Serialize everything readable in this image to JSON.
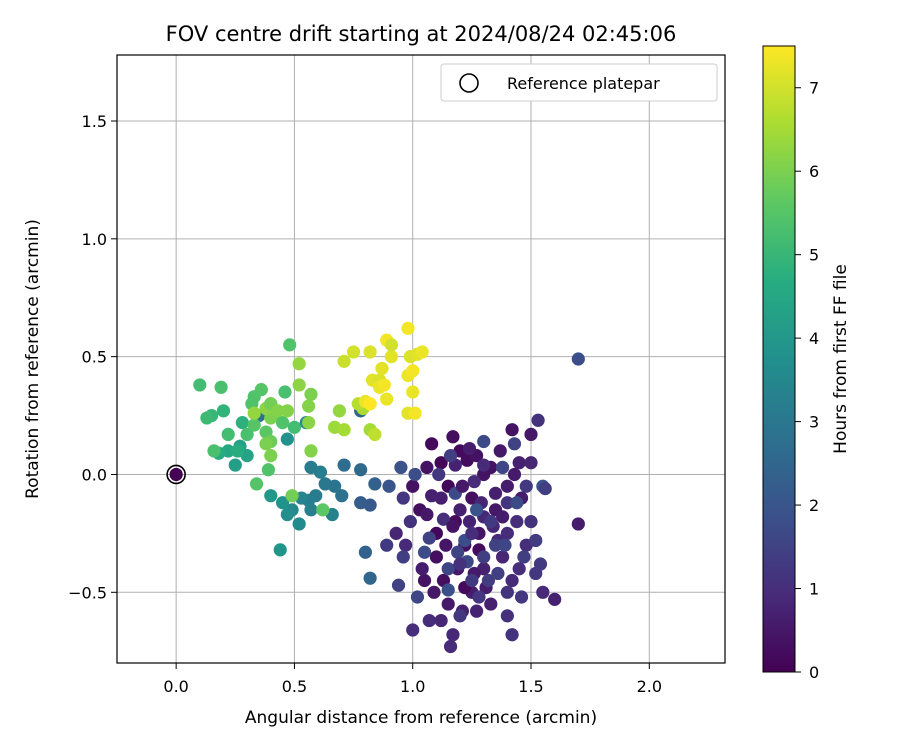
{
  "chart_data": {
    "type": "scatter",
    "title": "FOV centre drift starting at 2024/08/24 02:45:06",
    "xlabel": "Angular distance from reference (arcmin)",
    "ylabel": "Rotation from reference (arcmin)",
    "xlim": [
      -0.25,
      2.32
    ],
    "ylim": [
      -0.8,
      1.78
    ],
    "xticks": [
      0.0,
      0.5,
      1.0,
      1.5,
      2.0
    ],
    "xtick_labels": [
      "0.0",
      "0.5",
      "1.0",
      "1.5",
      "2.0"
    ],
    "yticks": [
      -0.5,
      0.0,
      0.5,
      1.0,
      1.5
    ],
    "ytick_labels": [
      "−0.5",
      "0.0",
      "0.5",
      "1.0",
      "1.5"
    ],
    "grid": true,
    "legend": {
      "placement": "top-right",
      "entries": [
        "Reference platepar"
      ]
    },
    "reference_point": {
      "x": 0.0,
      "y": 0.0,
      "hours": 0.0
    },
    "colorbar": {
      "label": "Hours from first FF file",
      "range": [
        0,
        7.5
      ],
      "ticks": [
        0,
        1,
        2,
        3,
        4,
        5,
        6,
        7
      ],
      "tick_labels": [
        "0",
        "1",
        "2",
        "3",
        "4",
        "5",
        "6",
        "7"
      ],
      "colormap": "viridis"
    },
    "points": [
      [
        1.12,
        0.05,
        0.1
      ],
      [
        1.15,
        -0.05,
        0.15
      ],
      [
        1.2,
        0.1,
        0.2
      ],
      [
        1.25,
        -0.1,
        0.3
      ],
      [
        1.3,
        0.0,
        0.4
      ],
      [
        1.18,
        -0.2,
        0.25
      ],
      [
        1.22,
        -0.3,
        0.35
      ],
      [
        1.28,
        -0.25,
        0.45
      ],
      [
        1.35,
        -0.15,
        0.5
      ],
      [
        1.4,
        -0.05,
        0.6
      ],
      [
        1.45,
        0.05,
        0.7
      ],
      [
        1.1,
        -0.35,
        0.3
      ],
      [
        1.05,
        -0.45,
        0.4
      ],
      [
        1.15,
        -0.55,
        0.5
      ],
      [
        1.25,
        -0.5,
        0.6
      ],
      [
        1.3,
        -0.4,
        0.7
      ],
      [
        1.38,
        -0.35,
        0.8
      ],
      [
        1.42,
        -0.45,
        0.9
      ],
      [
        1.48,
        -0.3,
        1.0
      ],
      [
        1.5,
        -0.2,
        1.1
      ],
      [
        1.08,
        0.13,
        0.2
      ],
      [
        1.17,
        0.16,
        0.3
      ],
      [
        1.23,
        0.06,
        0.25
      ],
      [
        1.27,
        0.08,
        0.35
      ],
      [
        1.33,
        0.03,
        0.4
      ],
      [
        1.37,
        0.1,
        0.5
      ],
      [
        1.43,
        0.0,
        0.55
      ],
      [
        1.46,
        -0.1,
        0.6
      ],
      [
        1.12,
        -0.1,
        0.65
      ],
      [
        1.2,
        -0.15,
        0.7
      ],
      [
        1.24,
        -0.2,
        0.75
      ],
      [
        1.29,
        -0.12,
        0.8
      ],
      [
        1.34,
        -0.22,
        0.85
      ],
      [
        1.36,
        -0.28,
        0.9
      ],
      [
        1.4,
        -0.25,
        0.95
      ],
      [
        1.44,
        -0.2,
        1.0
      ],
      [
        1.03,
        -0.15,
        0.3
      ],
      [
        1.0,
        -0.05,
        0.35
      ],
      [
        1.06,
        0.03,
        0.4
      ],
      [
        1.14,
        -0.3,
        0.45
      ],
      [
        1.19,
        -0.4,
        0.5
      ],
      [
        1.26,
        -0.42,
        0.55
      ],
      [
        1.31,
        -0.48,
        0.6
      ],
      [
        1.33,
        -0.55,
        0.65
      ],
      [
        1.21,
        -0.58,
        0.7
      ],
      [
        1.27,
        -0.58,
        0.75
      ],
      [
        1.12,
        -0.62,
        0.8
      ],
      [
        1.17,
        -0.68,
        0.85
      ],
      [
        1.16,
        -0.73,
        0.9
      ],
      [
        1.07,
        -0.62,
        0.95
      ],
      [
        1.0,
        -0.66,
        1.0
      ],
      [
        1.4,
        -0.6,
        1.05
      ],
      [
        1.42,
        -0.68,
        1.1
      ],
      [
        1.4,
        -0.5,
        1.15
      ],
      [
        1.46,
        -0.52,
        1.2
      ],
      [
        1.52,
        -0.42,
        1.25
      ],
      [
        1.54,
        -0.38,
        1.3
      ],
      [
        1.52,
        -0.28,
        1.35
      ],
      [
        1.47,
        -0.35,
        1.4
      ],
      [
        1.22,
        -0.48,
        0.2
      ],
      [
        1.28,
        -0.32,
        0.25
      ],
      [
        1.1,
        -0.25,
        0.15
      ],
      [
        1.13,
        -0.45,
        0.3
      ],
      [
        1.09,
        -0.5,
        0.5
      ],
      [
        1.04,
        -0.4,
        0.6
      ],
      [
        0.97,
        -0.3,
        0.9
      ],
      [
        0.96,
        -0.1,
        1.2
      ],
      [
        0.99,
        -0.2,
        1.1
      ],
      [
        0.93,
        -0.25,
        0.8
      ],
      [
        0.89,
        -0.3,
        1.3
      ],
      [
        0.96,
        -0.35,
        1.4
      ],
      [
        0.94,
        -0.47,
        1.5
      ],
      [
        1.02,
        -0.52,
        1.6
      ],
      [
        1.5,
        0.05,
        0.8
      ],
      [
        1.48,
        -0.05,
        1.3
      ],
      [
        1.43,
        0.13,
        1.5
      ],
      [
        1.3,
        0.14,
        1.7
      ],
      [
        1.38,
        0.03,
        1.6
      ],
      [
        1.7,
        -0.21,
        0.6
      ],
      [
        1.6,
        -0.53,
        0.7
      ],
      [
        1.55,
        -0.5,
        0.9
      ],
      [
        1.7,
        0.49,
        1.8
      ],
      [
        1.53,
        0.23,
        1.1
      ],
      [
        1.55,
        -0.05,
        1.9
      ],
      [
        1.56,
        -0.06,
        1.4
      ],
      [
        1.5,
        0.17,
        0.5
      ],
      [
        1.42,
        0.19,
        0.4
      ],
      [
        1.2,
        -0.6,
        1.2
      ],
      [
        1.25,
        -0.45,
        1.3
      ],
      [
        1.3,
        -0.35,
        1.4
      ],
      [
        1.35,
        -0.3,
        1.5
      ],
      [
        1.15,
        -0.4,
        1.6
      ],
      [
        1.18,
        -0.08,
        1.7
      ],
      [
        1.22,
        -0.28,
        1.8
      ],
      [
        1.06,
        -0.17,
        0.5
      ],
      [
        1.24,
        0.11,
        0.6
      ],
      [
        1.35,
        -0.08,
        0.65
      ],
      [
        1.18,
        0.04,
        0.75
      ],
      [
        1.3,
        -0.18,
        0.85
      ],
      [
        1.26,
        -0.03,
        0.95
      ],
      [
        1.13,
        -0.19,
        1.05
      ],
      [
        1.4,
        -0.12,
        1.15
      ],
      [
        1.11,
        0.0,
        1.25
      ],
      [
        1.32,
        -0.45,
        1.35
      ],
      [
        1.36,
        -0.42,
        1.45
      ],
      [
        1.19,
        -0.33,
        1.55
      ],
      [
        1.23,
        -0.37,
        1.65
      ],
      [
        1.05,
        -0.33,
        1.75
      ],
      [
        1.15,
        -0.49,
        1.85
      ],
      [
        1.27,
        -0.15,
        1.95
      ],
      [
        1.45,
        -0.4,
        1.0
      ],
      [
        1.38,
        -0.18,
        0.6
      ],
      [
        1.17,
        -0.22,
        0.4
      ],
      [
        1.21,
        -0.05,
        0.5
      ],
      [
        1.08,
        -0.09,
        0.7
      ],
      [
        1.3,
        0.04,
        0.9
      ],
      [
        1.25,
        -0.25,
        1.0
      ],
      [
        1.2,
        -0.38,
        1.1
      ],
      [
        1.28,
        -0.52,
        1.2
      ],
      [
        1.33,
        -0.2,
        1.3
      ],
      [
        1.16,
        0.08,
        1.4
      ],
      [
        1.07,
        -0.27,
        1.5
      ],
      [
        1.39,
        -0.3,
        1.6
      ],
      [
        1.44,
        -0.12,
        1.7
      ],
      [
        1.01,
        0.0,
        1.8
      ],
      [
        0.95,
        0.03,
        1.9
      ],
      [
        0.9,
        -0.05,
        2.0
      ],
      [
        0.82,
        -0.13,
        2.1
      ],
      [
        0.78,
        -0.12,
        2.2
      ],
      [
        0.84,
        -0.04,
        2.3
      ],
      [
        0.8,
        -0.33,
        2.4
      ],
      [
        0.82,
        -0.44,
        2.5
      ],
      [
        0.78,
        0.02,
        2.6
      ],
      [
        0.71,
        0.04,
        2.7
      ],
      [
        0.7,
        -0.09,
        2.8
      ],
      [
        0.67,
        -0.05,
        2.9
      ],
      [
        0.63,
        -0.04,
        3.0
      ],
      [
        0.59,
        -0.09,
        3.1
      ],
      [
        0.56,
        -0.11,
        3.2
      ],
      [
        0.57,
        -0.15,
        3.3
      ],
      [
        0.53,
        -0.1,
        3.4
      ],
      [
        0.49,
        -0.15,
        3.5
      ],
      [
        0.52,
        -0.21,
        3.6
      ],
      [
        0.47,
        -0.17,
        3.7
      ],
      [
        0.45,
        -0.12,
        3.8
      ],
      [
        0.44,
        -0.32,
        3.9
      ],
      [
        0.4,
        -0.09,
        4.0
      ],
      [
        0.66,
        -0.17,
        3.3
      ],
      [
        0.61,
        0.01,
        3.2
      ],
      [
        0.57,
        0.03,
        3.1
      ],
      [
        0.78,
        0.27,
        2.5
      ],
      [
        0.55,
        0.22,
        3.5
      ],
      [
        0.35,
        0.25,
        2.8
      ],
      [
        0.47,
        0.15,
        3.8
      ],
      [
        0.25,
        0.04,
        4.2
      ],
      [
        0.27,
        0.12,
        4.3
      ],
      [
        0.3,
        0.08,
        4.4
      ],
      [
        0.22,
        0.1,
        4.5
      ],
      [
        0.18,
        0.09,
        4.6
      ],
      [
        0.26,
        0.1,
        4.7
      ],
      [
        0.28,
        0.22,
        4.8
      ],
      [
        0.2,
        0.27,
        4.9
      ],
      [
        0.15,
        0.25,
        5.0
      ],
      [
        0.13,
        0.24,
        5.1
      ],
      [
        0.1,
        0.38,
        5.2
      ],
      [
        0.19,
        0.37,
        5.3
      ],
      [
        0.33,
        0.33,
        5.4
      ],
      [
        0.36,
        0.36,
        5.5
      ],
      [
        0.4,
        0.3,
        5.6
      ],
      [
        0.42,
        0.26,
        5.7
      ],
      [
        0.38,
        0.28,
        5.5
      ],
      [
        0.32,
        0.3,
        5.4
      ],
      [
        0.3,
        0.17,
        5.3
      ],
      [
        0.22,
        0.17,
        5.2
      ],
      [
        0.16,
        0.1,
        5.3
      ],
      [
        0.38,
        0.18,
        5.6
      ],
      [
        0.4,
        0.14,
        5.8
      ],
      [
        0.33,
        0.21,
        5.5
      ],
      [
        0.45,
        0.22,
        5.4
      ],
      [
        0.5,
        0.2,
        5.2
      ],
      [
        0.46,
        0.35,
        5.3
      ],
      [
        0.48,
        0.55,
        5.4
      ],
      [
        0.34,
        -0.04,
        5.5
      ],
      [
        0.39,
        0.02,
        5.4
      ],
      [
        0.49,
        -0.09,
        5.9
      ],
      [
        0.62,
        -0.15,
        5.6
      ],
      [
        0.4,
        0.08,
        6.0
      ],
      [
        0.47,
        0.27,
        6.1
      ],
      [
        0.52,
        0.38,
        6.2
      ],
      [
        0.52,
        0.47,
        6.3
      ],
      [
        0.57,
        0.34,
        6.0
      ],
      [
        0.56,
        0.29,
        6.1
      ],
      [
        0.56,
        0.22,
        6.2
      ],
      [
        0.57,
        0.1,
        6.1
      ],
      [
        0.4,
        0.24,
        6.0
      ],
      [
        0.38,
        0.28,
        6.2
      ],
      [
        0.33,
        0.26,
        6.3
      ],
      [
        0.4,
        0.3,
        5.9
      ],
      [
        0.43,
        0.27,
        6.1
      ],
      [
        0.38,
        0.13,
        6.0
      ],
      [
        0.69,
        0.27,
        6.3
      ],
      [
        0.67,
        0.2,
        6.4
      ],
      [
        0.71,
        0.19,
        6.5
      ],
      [
        0.79,
        0.28,
        6.6
      ],
      [
        0.82,
        0.19,
        6.5
      ],
      [
        0.77,
        0.3,
        6.7
      ],
      [
        0.84,
        0.17,
        6.8
      ],
      [
        0.71,
        0.48,
        6.9
      ],
      [
        0.75,
        0.52,
        7.0
      ],
      [
        0.82,
        0.52,
        7.1
      ],
      [
        0.83,
        0.4,
        7.2
      ],
      [
        0.8,
        0.31,
        7.3
      ],
      [
        0.86,
        0.4,
        7.1
      ],
      [
        0.87,
        0.45,
        7.2
      ],
      [
        0.86,
        0.37,
        7.3
      ],
      [
        0.88,
        0.38,
        7.4
      ],
      [
        0.89,
        0.32,
        7.3
      ],
      [
        0.91,
        0.5,
        7.2
      ],
      [
        0.89,
        0.57,
        7.4
      ],
      [
        0.98,
        0.42,
        7.3
      ],
      [
        1.0,
        0.44,
        7.4
      ],
      [
        0.99,
        0.5,
        7.1
      ],
      [
        1.02,
        0.51,
        7.2
      ],
      [
        1.04,
        0.52,
        7.3
      ],
      [
        0.98,
        0.62,
        7.4
      ],
      [
        1.0,
        0.35,
        7.3
      ],
      [
        0.98,
        0.26,
        7.2
      ],
      [
        1.01,
        0.26,
        7.4
      ],
      [
        0.91,
        0.55,
        7.0
      ],
      [
        0.82,
        0.3,
        7.5
      ]
    ]
  }
}
